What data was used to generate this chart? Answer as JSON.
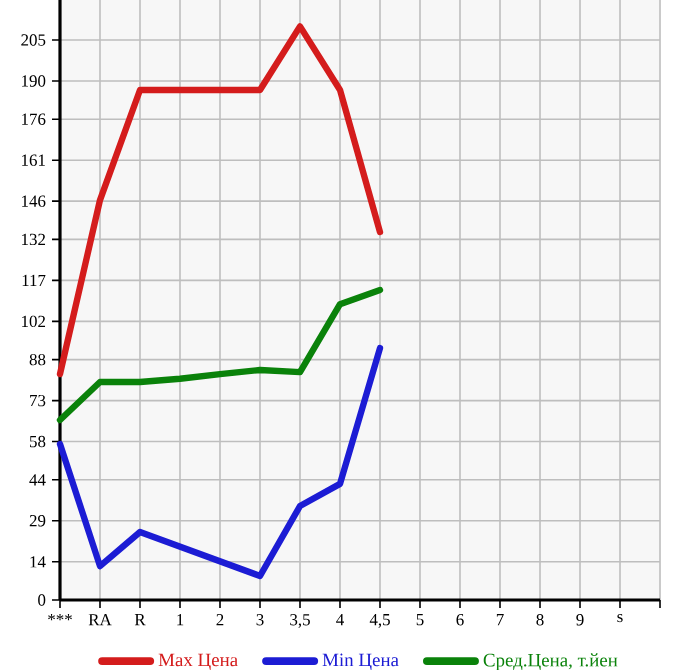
{
  "chart_data": {
    "type": "line",
    "categories": [
      "***",
      "RA",
      "R",
      "1",
      "2",
      "3",
      "3,5",
      "4",
      "4,5",
      "5",
      "6",
      "7",
      "8",
      "9",
      "s"
    ],
    "series": [
      {
        "name": "Max Цена",
        "color": "#d41c1c",
        "values": [
          82.7,
          146.4,
          186.7,
          186.7,
          186.7,
          186.7,
          210,
          186.7,
          134.7,
          null,
          null,
          null,
          null,
          null,
          null
        ]
      },
      {
        "name": "Min Цена",
        "color": "#1c1cd4",
        "values": [
          57.1,
          12.4,
          24.9,
          null,
          null,
          8.8,
          34.4,
          42.5,
          92.2,
          null,
          null,
          null,
          null,
          null,
          null
        ]
      },
      {
        "name": "Сред.Цена, т.йен",
        "color": "#0a820a",
        "values": [
          65.9,
          79.8,
          79.8,
          81,
          82.7,
          84.2,
          83.4,
          108.3,
          113.5,
          null,
          null,
          null,
          null,
          null,
          null
        ]
      }
    ],
    "ylim": [
      0,
      219.64
    ],
    "yticks": [
      0,
      14,
      29,
      44,
      58,
      73,
      88,
      102,
      117,
      132,
      146,
      161,
      176,
      190,
      205
    ],
    "grid": true,
    "legend": "bottom",
    "marker": "none",
    "line_style": "solid"
  }
}
